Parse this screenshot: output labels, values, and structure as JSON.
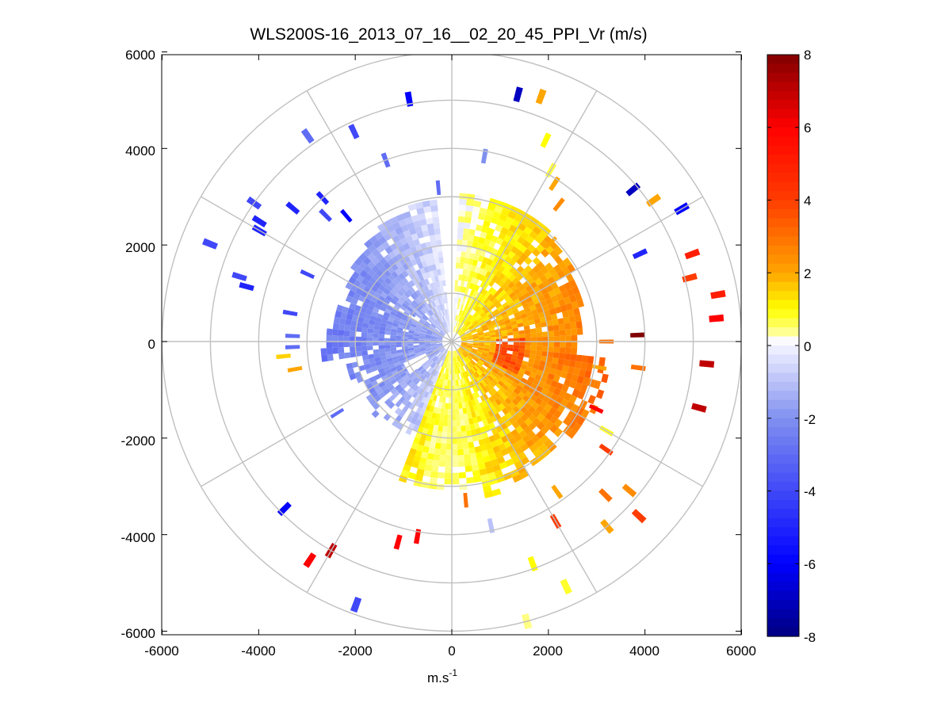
{
  "chart_data": {
    "type": "heatmap",
    "subtype": "polar-ppi",
    "title": "WLS200S-16_2013_07_16__02_20_45_PPI_Vr (m/s)",
    "xlabel": "m.s",
    "xlabel_sup": "-1",
    "ylabel": "",
    "xlim": [
      -6000,
      6000
    ],
    "ylim": [
      -6000,
      6000
    ],
    "x_ticks": [
      "-6000",
      "-4000",
      "-2000",
      "0",
      "2000",
      "4000",
      "6000"
    ],
    "y_ticks": [
      "6000",
      "4000",
      "2000",
      "0",
      "-2000",
      "-4000",
      "-6000"
    ],
    "polar_grid": {
      "ring_radii_m": [
        1000,
        2000,
        3000,
        4000,
        5000,
        6000
      ],
      "spoke_angles_deg": [
        0,
        30,
        60,
        90,
        120,
        150,
        180,
        210,
        240,
        270,
        300,
        330
      ]
    },
    "colorbar": {
      "range": [
        -8,
        8
      ],
      "ticks": [
        "8",
        "6",
        "4",
        "2",
        "0",
        "-2",
        "-4",
        "-6",
        "-8"
      ],
      "stops": [
        "#000080",
        "#0000ff",
        "#9aa8f2",
        "#ffffff",
        "#ffff00",
        "#ffa500",
        "#ff0000",
        "#800000"
      ],
      "zero_white_band": [
        -0.2,
        0.3
      ]
    },
    "data_description_values": {
      "west_sector_mean_vr": -2.5,
      "east_sector_mean_vr": 1.5,
      "far_east_gates_vr": 6,
      "far_northwest_gates_vr": -6
    },
    "gates": [
      {
        "az": 300,
        "r": 4600,
        "vr": -5
      },
      {
        "az": 302,
        "r": 4700,
        "vr": -5
      },
      {
        "az": 305,
        "r": 5000,
        "vr": -4
      },
      {
        "az": 310,
        "r": 4300,
        "vr": -5
      },
      {
        "az": 315,
        "r": 3700,
        "vr": -4
      },
      {
        "az": 318,
        "r": 4000,
        "vr": -5
      },
      {
        "az": 320,
        "r": 3400,
        "vr": -6
      },
      {
        "az": 325,
        "r": 5200,
        "vr": -3
      },
      {
        "az": 335,
        "r": 4800,
        "vr": -4
      },
      {
        "az": 340,
        "r": 4000,
        "vr": -3
      },
      {
        "az": 350,
        "r": 5100,
        "vr": -6
      },
      {
        "az": 355,
        "r": 3200,
        "vr": -3
      },
      {
        "az": 10,
        "r": 3900,
        "vr": -2
      },
      {
        "az": 15,
        "r": 5300,
        "vr": -7
      },
      {
        "az": 20,
        "r": 5400,
        "vr": 2
      },
      {
        "az": 25,
        "r": 4600,
        "vr": 1
      },
      {
        "az": 30,
        "r": 4100,
        "vr": 0.7
      },
      {
        "az": 33,
        "r": 3900,
        "vr": 2
      },
      {
        "az": 38,
        "r": 3600,
        "vr": 2.5
      },
      {
        "az": 45,
        "r": 2900,
        "vr": 2
      },
      {
        "az": 50,
        "r": 4900,
        "vr": -7
      },
      {
        "az": 55,
        "r": 5100,
        "vr": 2
      },
      {
        "az": 60,
        "r": 5500,
        "vr": -6
      },
      {
        "az": 65,
        "r": 4300,
        "vr": -5
      },
      {
        "az": 70,
        "r": 5300,
        "vr": 5
      },
      {
        "az": 75,
        "r": 5100,
        "vr": 4
      },
      {
        "az": 80,
        "r": 5600,
        "vr": 5
      },
      {
        "az": 85,
        "r": 5500,
        "vr": 6
      },
      {
        "az": 88,
        "r": 3850,
        "vr": 8
      },
      {
        "az": 90,
        "r": 3200,
        "vr": 3
      },
      {
        "az": 95,
        "r": 5300,
        "vr": 7
      },
      {
        "az": 98,
        "r": 3900,
        "vr": 3
      },
      {
        "az": 100,
        "r": 3100,
        "vr": 2
      },
      {
        "az": 105,
        "r": 5300,
        "vr": 7
      },
      {
        "az": 115,
        "r": 3300,
        "vr": 6
      },
      {
        "az": 120,
        "r": 3700,
        "vr": 0.8
      },
      {
        "az": 125,
        "r": 3900,
        "vr": 4
      },
      {
        "az": 130,
        "r": 4800,
        "vr": 2.5
      },
      {
        "az": 133,
        "r": 5300,
        "vr": 4
      },
      {
        "az": 135,
        "r": 4500,
        "vr": 3
      },
      {
        "az": 140,
        "r": 5000,
        "vr": 2
      },
      {
        "az": 145,
        "r": 3800,
        "vr": 2
      },
      {
        "az": 150,
        "r": 4300,
        "vr": 4
      },
      {
        "az": 155,
        "r": 5600,
        "vr": 0.8
      },
      {
        "az": 160,
        "r": 4900,
        "vr": 1
      },
      {
        "az": 165,
        "r": 6000,
        "vr": 0.4
      },
      {
        "az": 168,
        "r": 3900,
        "vr": -1
      },
      {
        "az": 175,
        "r": 3300,
        "vr": 3
      },
      {
        "az": 190,
        "r": 4100,
        "vr": 6
      },
      {
        "az": 195,
        "r": 4300,
        "vr": 6
      },
      {
        "az": 200,
        "r": 5800,
        "vr": -4
      },
      {
        "az": 210,
        "r": 5000,
        "vr": 7
      },
      {
        "az": 213,
        "r": 5400,
        "vr": 6
      },
      {
        "az": 225,
        "r": 4900,
        "vr": -6
      },
      {
        "az": 238,
        "r": 2800,
        "vr": -3
      },
      {
        "az": 260,
        "r": 3300,
        "vr": 2
      },
      {
        "az": 265,
        "r": 3500,
        "vr": 1.5
      },
      {
        "az": 268,
        "r": 3300,
        "vr": -3
      },
      {
        "az": 272,
        "r": 3300,
        "vr": -3
      },
      {
        "az": 280,
        "r": 3400,
        "vr": -4
      },
      {
        "az": 285,
        "r": 4400,
        "vr": -5
      },
      {
        "az": 287,
        "r": 4600,
        "vr": -4
      },
      {
        "az": 292,
        "r": 5400,
        "vr": -4
      },
      {
        "az": 295,
        "r": 3300,
        "vr": -4
      }
    ]
  }
}
